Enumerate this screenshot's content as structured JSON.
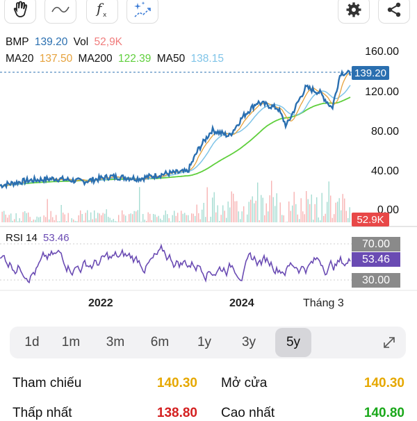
{
  "toolbar": {
    "tools": [
      {
        "name": "hand-tool-icon"
      },
      {
        "name": "line-tool-icon"
      },
      {
        "name": "function-tool-icon"
      },
      {
        "name": "magic-tool-icon"
      }
    ],
    "actions": [
      {
        "name": "settings-gear-icon"
      },
      {
        "name": "share-icon"
      }
    ]
  },
  "legend": {
    "symbol": "BMP",
    "price": "139.20",
    "vol_label": "Vol",
    "vol_value": "52,9K",
    "ma20_label": "MA20",
    "ma20_value": "137.50",
    "ma200_label": "MA200",
    "ma200_value": "122.39",
    "ma50_label": "MA50",
    "ma50_value": "138.15"
  },
  "colors": {
    "price_blue": "#2a6fb0",
    "ma20": "#e6a23c",
    "ma200": "#5fcf3c",
    "ma50": "#7fc4e8",
    "vol_red": "#f07c7c",
    "rsi": "#6a4bb3",
    "tag_gray": "#8a8a8a",
    "tag_red": "#e84848"
  },
  "price_axis": [
    "160.00",
    "120.00",
    "80.00",
    "40.00",
    "0.00"
  ],
  "price_tag": "139.20",
  "volume_tag": "52.9K",
  "rsi": {
    "label": "RSI 14",
    "value": "53.46",
    "upper": "70.00",
    "lower": "30.00"
  },
  "x_axis": [
    "2022",
    "2024",
    "Tháng 3"
  ],
  "ranges": [
    "1d",
    "1m",
    "3m",
    "6m",
    "1y",
    "3y",
    "5y"
  ],
  "active_range": "5y",
  "stats": {
    "ref_label": "Tham chiếu",
    "ref_value": "140.30",
    "open_label": "Mở cửa",
    "open_value": "140.30",
    "low_label": "Thấp nhất",
    "low_value": "138.80",
    "high_label": "Cao nhất",
    "high_value": "140.80"
  }
}
